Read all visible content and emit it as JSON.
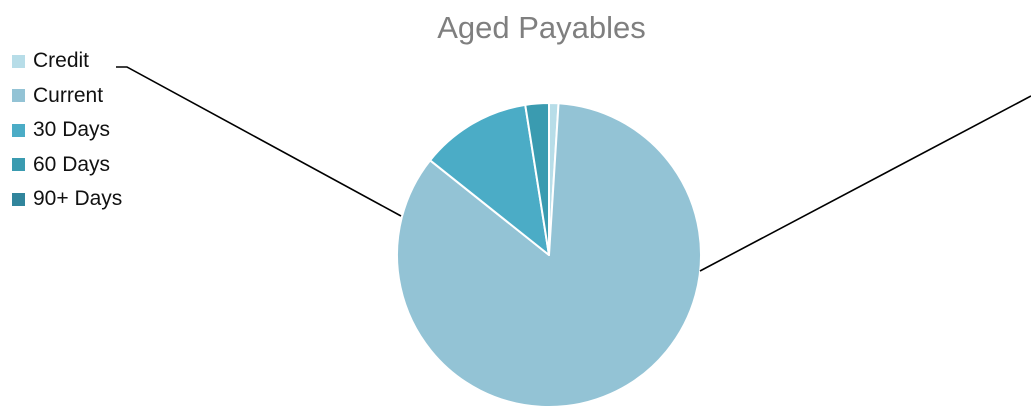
{
  "chart_data": {
    "type": "pie",
    "title": "Aged Payables",
    "legend_position": "top-left",
    "start_angle_deg": 90,
    "direction": "clockwise",
    "slices": [
      {
        "name": "Credit",
        "value": 1.0,
        "color": "#b7dde8"
      },
      {
        "name": "Current",
        "value": 84.7,
        "color": "#93c3d5"
      },
      {
        "name": "30 Days",
        "value": 11.8,
        "color": "#4bacc6"
      },
      {
        "name": "60 Days",
        "value": 2.5,
        "color": "#3a9bb0"
      },
      {
        "name": "90+ Days",
        "value": 0.0,
        "color": "#31859c"
      }
    ]
  }
}
